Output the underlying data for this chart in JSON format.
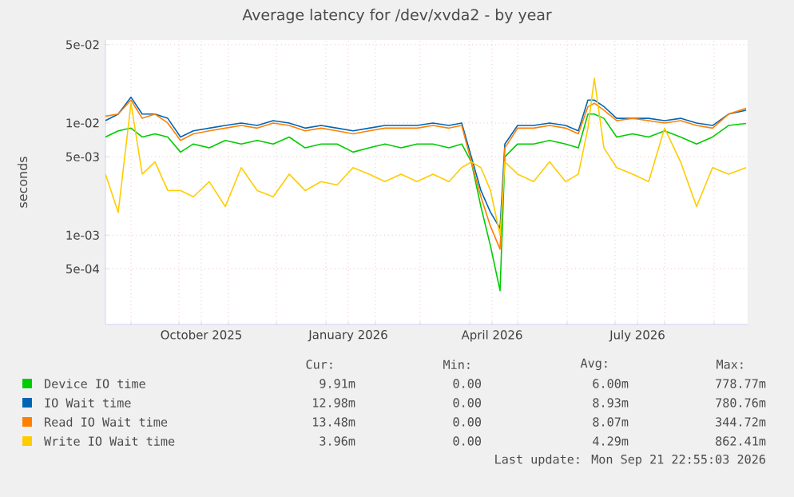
{
  "chart_data": {
    "type": "line",
    "title": "Average latency for /dev/xvda2 - by year",
    "ylabel": "seconds",
    "log": "y",
    "grid": true,
    "legend": "bottom",
    "xlim": [
      "2025-08-16",
      "2026-09-22"
    ],
    "xticks": [
      {
        "value": "2025-09-01",
        "label": null
      },
      {
        "value": "2025-10-01",
        "label": null
      },
      {
        "value": "2025-10-15",
        "label": "October 2025"
      },
      {
        "value": "2025-11-01",
        "label": null
      },
      {
        "value": "2025-12-01",
        "label": null
      },
      {
        "value": "2026-01-01",
        "label": null
      },
      {
        "value": "2026-01-15",
        "label": "January 2026"
      },
      {
        "value": "2026-02-01",
        "label": null
      },
      {
        "value": "2026-03-01",
        "label": null
      },
      {
        "value": "2026-04-01",
        "label": null
      },
      {
        "value": "2026-04-15",
        "label": "April 2026"
      },
      {
        "value": "2026-05-01",
        "label": null
      },
      {
        "value": "2026-06-01",
        "label": null
      },
      {
        "value": "2026-07-01",
        "label": null
      },
      {
        "value": "2026-07-15",
        "label": "July 2026"
      },
      {
        "value": "2026-08-01",
        "label": null
      },
      {
        "value": "2026-09-01",
        "label": null
      }
    ],
    "ylim": [
      0.00016,
      0.055
    ],
    "yticks": [
      {
        "value": 0.0005,
        "label": "5e-04"
      },
      {
        "value": 0.001,
        "label": "1e-03"
      },
      {
        "value": 0.005,
        "label": "5e-03"
      },
      {
        "value": 0.01,
        "label": "1e-02"
      },
      {
        "value": 0.05,
        "label": "5e-02"
      }
    ],
    "x": [
      "2025-08-16",
      "2025-08-24",
      "2025-09-01",
      "2025-09-08",
      "2025-09-16",
      "2025-09-24",
      "2025-10-02",
      "2025-10-10",
      "2025-10-20",
      "2025-10-30",
      "2025-11-09",
      "2025-11-19",
      "2025-11-29",
      "2025-12-09",
      "2025-12-19",
      "2025-12-29",
      "2026-01-08",
      "2026-01-18",
      "2026-01-28",
      "2026-02-07",
      "2026-02-17",
      "2026-02-27",
      "2026-03-09",
      "2026-03-19",
      "2026-03-27",
      "2026-04-02",
      "2026-04-08",
      "2026-04-14",
      "2026-04-20",
      "2026-04-23",
      "2026-05-01",
      "2026-05-11",
      "2026-05-21",
      "2026-05-31",
      "2026-06-08",
      "2026-06-14",
      "2026-06-18",
      "2026-06-24",
      "2026-07-02",
      "2026-07-12",
      "2026-07-22",
      "2026-08-01",
      "2026-08-11",
      "2026-08-21",
      "2026-08-31",
      "2026-09-10",
      "2026-09-21"
    ],
    "series": [
      {
        "name": "Device IO time",
        "color": "#00cc00",
        "values": [
          0.0075,
          0.0085,
          0.009,
          0.0075,
          0.008,
          0.0075,
          0.0055,
          0.0065,
          0.006,
          0.007,
          0.0065,
          0.007,
          0.0065,
          0.0075,
          0.006,
          0.0065,
          0.0065,
          0.0055,
          0.006,
          0.0065,
          0.006,
          0.0065,
          0.0065,
          0.006,
          0.0065,
          0.0045,
          0.0018,
          0.0008,
          0.00032,
          0.005,
          0.0065,
          0.0065,
          0.007,
          0.0065,
          0.006,
          0.012,
          0.012,
          0.011,
          0.0075,
          0.008,
          0.0075,
          0.0085,
          0.0075,
          0.0065,
          0.0075,
          0.0095,
          0.0099
        ]
      },
      {
        "name": "IO Wait time",
        "color": "#0066b3",
        "values": [
          0.0105,
          0.012,
          0.017,
          0.012,
          0.012,
          0.011,
          0.0075,
          0.0085,
          0.009,
          0.0095,
          0.01,
          0.0095,
          0.0105,
          0.01,
          0.009,
          0.0095,
          0.009,
          0.0085,
          0.009,
          0.0095,
          0.0095,
          0.0095,
          0.01,
          0.0095,
          0.01,
          0.005,
          0.0025,
          0.0016,
          0.00115,
          0.0065,
          0.0095,
          0.0095,
          0.01,
          0.0095,
          0.0085,
          0.016,
          0.016,
          0.014,
          0.011,
          0.011,
          0.011,
          0.0105,
          0.011,
          0.01,
          0.0095,
          0.012,
          0.013
        ]
      },
      {
        "name": "Read IO Wait time",
        "color": "#ff8000",
        "values": [
          0.0115,
          0.012,
          0.016,
          0.011,
          0.012,
          0.01,
          0.007,
          0.008,
          0.0085,
          0.009,
          0.0095,
          0.009,
          0.01,
          0.0095,
          0.0085,
          0.009,
          0.0085,
          0.008,
          0.0085,
          0.009,
          0.009,
          0.009,
          0.0095,
          0.009,
          0.0095,
          0.0045,
          0.0022,
          0.0012,
          0.00075,
          0.006,
          0.009,
          0.009,
          0.0095,
          0.009,
          0.008,
          0.014,
          0.015,
          0.013,
          0.0105,
          0.011,
          0.0105,
          0.01,
          0.0105,
          0.0095,
          0.009,
          0.012,
          0.0135
        ]
      },
      {
        "name": "Write IO Wait time",
        "color": "#ffcc00",
        "values": [
          0.0035,
          0.0016,
          0.015,
          0.0035,
          0.0045,
          0.0025,
          0.0025,
          0.0022,
          0.003,
          0.0018,
          0.004,
          0.0025,
          0.0022,
          0.0035,
          0.0025,
          0.003,
          0.0028,
          0.004,
          0.0035,
          0.003,
          0.0035,
          0.003,
          0.0035,
          0.003,
          0.004,
          0.0045,
          0.004,
          0.0025,
          0.001,
          0.0045,
          0.0035,
          0.003,
          0.0045,
          0.003,
          0.0035,
          0.009,
          0.025,
          0.006,
          0.004,
          0.0035,
          0.003,
          0.009,
          0.0045,
          0.0018,
          0.004,
          0.0035,
          0.004
        ]
      }
    ],
    "annotations": [
      "Cur:",
      "Min:",
      "Avg:",
      "Max:",
      "9.91m",
      "0.00",
      "6.00m",
      "778.77m",
      "12.98m",
      "0.00",
      "8.93m",
      "780.76m",
      "13.48m",
      "0.00",
      "8.07m",
      "344.72m",
      "3.96m",
      "0.00",
      "4.29m",
      "862.41m",
      "Last update: Mon Sep 21 22:55:03 2026"
    ]
  }
}
